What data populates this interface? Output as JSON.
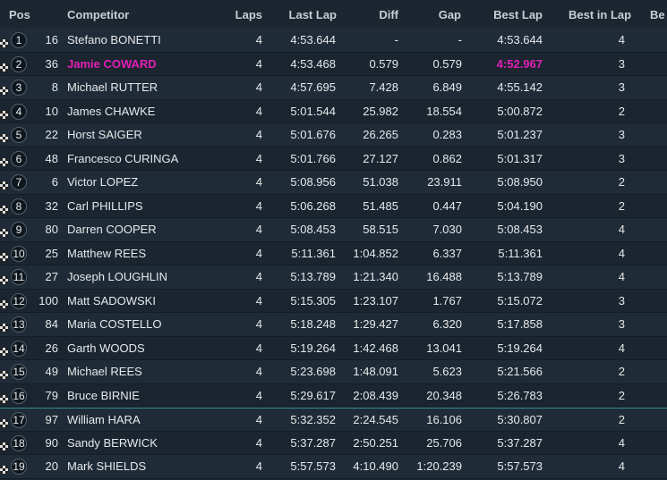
{
  "table": {
    "header": [
      "Pos",
      "Competitor",
      "Laps",
      "Last Lap",
      "Diff",
      "Gap",
      "Best Lap",
      "Best in Lap",
      "Be"
    ],
    "rows": [
      [
        "1",
        "16",
        "Stefano BONETTI",
        "4",
        "4:53.644",
        "-",
        "-",
        "4:53.644",
        "4"
      ],
      [
        "2",
        "36",
        "Jamie COWARD",
        "4",
        "4:53.468",
        "0.579",
        "0.579",
        "4:52.967",
        "3"
      ],
      [
        "3",
        "8",
        "Michael RUTTER",
        "4",
        "4:57.695",
        "7.428",
        "6.849",
        "4:55.142",
        "3"
      ],
      [
        "4",
        "10",
        "James CHAWKE",
        "4",
        "5:01.544",
        "25.982",
        "18.554",
        "5:00.872",
        "2"
      ],
      [
        "5",
        "22",
        "Horst SAIGER",
        "4",
        "5:01.676",
        "26.265",
        "0.283",
        "5:01.237",
        "3"
      ],
      [
        "6",
        "48",
        "Francesco CURINGA",
        "4",
        "5:01.766",
        "27.127",
        "0.862",
        "5:01.317",
        "3"
      ],
      [
        "7",
        "6",
        "Victor LOPEZ",
        "4",
        "5:08.956",
        "51.038",
        "23.911",
        "5:08.950",
        "2"
      ],
      [
        "8",
        "32",
        "Carl PHILLIPS",
        "4",
        "5:06.268",
        "51.485",
        "0.447",
        "5:04.190",
        "2"
      ],
      [
        "9",
        "80",
        "Darren COOPER",
        "4",
        "5:08.453",
        "58.515",
        "7.030",
        "5:08.453",
        "4"
      ],
      [
        "10",
        "25",
        "Matthew REES",
        "4",
        "5:11.361",
        "1:04.852",
        "6.337",
        "5:11.361",
        "4"
      ],
      [
        "11",
        "27",
        "Joseph LOUGHLIN",
        "4",
        "5:13.789",
        "1:21.340",
        "16.488",
        "5:13.789",
        "4"
      ],
      [
        "12",
        "100",
        "Matt SADOWSKI",
        "4",
        "5:15.305",
        "1:23.107",
        "1.767",
        "5:15.072",
        "3"
      ],
      [
        "13",
        "84",
        "Maria COSTELLO",
        "4",
        "5:18.248",
        "1:29.427",
        "6.320",
        "5:17.858",
        "3"
      ],
      [
        "14",
        "26",
        "Garth WOODS",
        "4",
        "5:19.264",
        "1:42.468",
        "13.041",
        "5:19.264",
        "4"
      ],
      [
        "15",
        "49",
        "Michael REES",
        "4",
        "5:23.698",
        "1:48.091",
        "5.623",
        "5:21.566",
        "2"
      ],
      [
        "16",
        "79",
        "Bruce BIRNIE",
        "4",
        "5:29.617",
        "2:08.439",
        "20.348",
        "5:26.783",
        "2"
      ],
      [
        "17",
        "97",
        "William HARA",
        "4",
        "5:32.352",
        "2:24.545",
        "16.106",
        "5:30.807",
        "2"
      ],
      [
        "18",
        "90",
        "Sandy BERWICK",
        "4",
        "5:37.287",
        "2:50.251",
        "25.706",
        "5:37.287",
        "4"
      ],
      [
        "19",
        "20",
        "Mark SHIELDS",
        "4",
        "5:57.573",
        "4:10.490",
        "1:20.239",
        "5:57.573",
        "4"
      ]
    ]
  }
}
